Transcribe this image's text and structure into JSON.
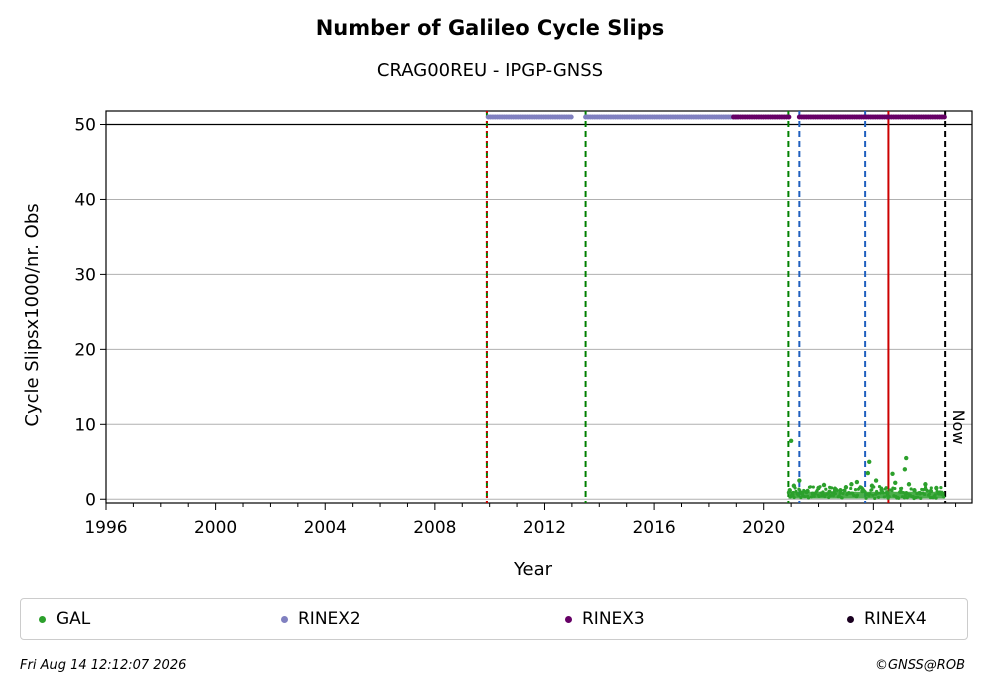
{
  "title": "Number of Galileo Cycle Slips",
  "subtitle": "CRAG00REU - IPGP-GNSS",
  "footer": {
    "timestamp": "Fri Aug 14 12:12:07 2026",
    "credit": "©GNSS@ROB"
  },
  "colors": {
    "GAL": "#2ca02c",
    "RINEX2": "#8080c0",
    "RINEX3": "#660066",
    "RINEX4": "#1a0020",
    "green_event": "#008000",
    "blue_event": "#1f5fbf",
    "red_event": "#cc0000",
    "now": "#000000",
    "grid": "#b0b0b0"
  },
  "legend": [
    {
      "label": "GAL",
      "color": "#2ca02c"
    },
    {
      "label": "RINEX2",
      "color": "#8080c0"
    },
    {
      "label": "RINEX3",
      "color": "#660066"
    },
    {
      "label": "RINEX4",
      "color": "#1a0020"
    }
  ],
  "chart_data": {
    "type": "scatter",
    "title": "Number of Galileo Cycle Slips",
    "subtitle": "CRAG00REU - IPGP-GNSS",
    "xlabel": "Year",
    "ylabel": "Cycle Slipsx1000/nr. Obs",
    "xlim": [
      1996,
      2027.6
    ],
    "ylim": [
      -0.5,
      51.8
    ],
    "x_ticks": [
      1996,
      2000,
      2004,
      2008,
      2012,
      2016,
      2020,
      2024
    ],
    "y_ticks": [
      0,
      10,
      20,
      30,
      40,
      50
    ],
    "grid": "horizontal",
    "legend_position": "bottom",
    "series": [
      {
        "name": "GAL",
        "points": [
          [
            2020.95,
            1.2
          ],
          [
            2021.0,
            7.8
          ],
          [
            2021.05,
            0.6
          ],
          [
            2021.1,
            1.8
          ],
          [
            2021.3,
            2.5
          ],
          [
            2021.4,
            0.8
          ],
          [
            2021.6,
            1.1
          ],
          [
            2021.8,
            0.7
          ],
          [
            2022.0,
            1.5
          ],
          [
            2022.2,
            1.9
          ],
          [
            2022.4,
            1.0
          ],
          [
            2022.6,
            1.4
          ],
          [
            2022.8,
            1.2
          ],
          [
            2023.0,
            1.6
          ],
          [
            2023.2,
            2.0
          ],
          [
            2023.4,
            2.3
          ],
          [
            2023.6,
            1.1
          ],
          [
            2023.8,
            3.5
          ],
          [
            2023.85,
            5.0
          ],
          [
            2023.95,
            1.8
          ],
          [
            2024.1,
            2.5
          ],
          [
            2024.3,
            1.3
          ],
          [
            2024.5,
            0.9
          ],
          [
            2024.7,
            3.4
          ],
          [
            2024.8,
            2.2
          ],
          [
            2025.0,
            1.0
          ],
          [
            2025.15,
            4.0
          ],
          [
            2025.2,
            5.5
          ],
          [
            2025.3,
            2.0
          ],
          [
            2025.5,
            1.2
          ],
          [
            2025.7,
            0.8
          ],
          [
            2025.9,
            2.0
          ],
          [
            2026.1,
            1.1
          ],
          [
            2026.3,
            1.5
          ],
          [
            2026.5,
            0.7
          ]
        ],
        "continuous_band": {
          "from": 2020.9,
          "to": 2026.6,
          "min": 0.1,
          "max": 1.0
        }
      },
      {
        "name": "RINEX2",
        "y": 51,
        "intervals": [
          [
            2009.95,
            2013.0
          ],
          [
            2013.5,
            2019.1
          ]
        ]
      },
      {
        "name": "RINEX3",
        "y": 51,
        "intervals": [
          [
            2018.9,
            2020.95
          ],
          [
            2021.3,
            2026.6
          ]
        ]
      },
      {
        "name": "RINEX4",
        "y": 51,
        "intervals": []
      }
    ],
    "event_lines": [
      {
        "x": 2009.9,
        "style": "dashed",
        "color": "green"
      },
      {
        "x": 2009.9,
        "style": "dotted",
        "color": "red"
      },
      {
        "x": 2013.5,
        "style": "dashed",
        "color": "green"
      },
      {
        "x": 2020.9,
        "style": "dashed",
        "color": "green"
      },
      {
        "x": 2021.3,
        "style": "dashed",
        "color": "blue"
      },
      {
        "x": 2023.7,
        "style": "dashed",
        "color": "blue"
      },
      {
        "x": 2024.55,
        "style": "solid",
        "color": "red"
      },
      {
        "x": 2026.62,
        "style": "dashed",
        "color": "black",
        "label": "Now"
      }
    ]
  }
}
